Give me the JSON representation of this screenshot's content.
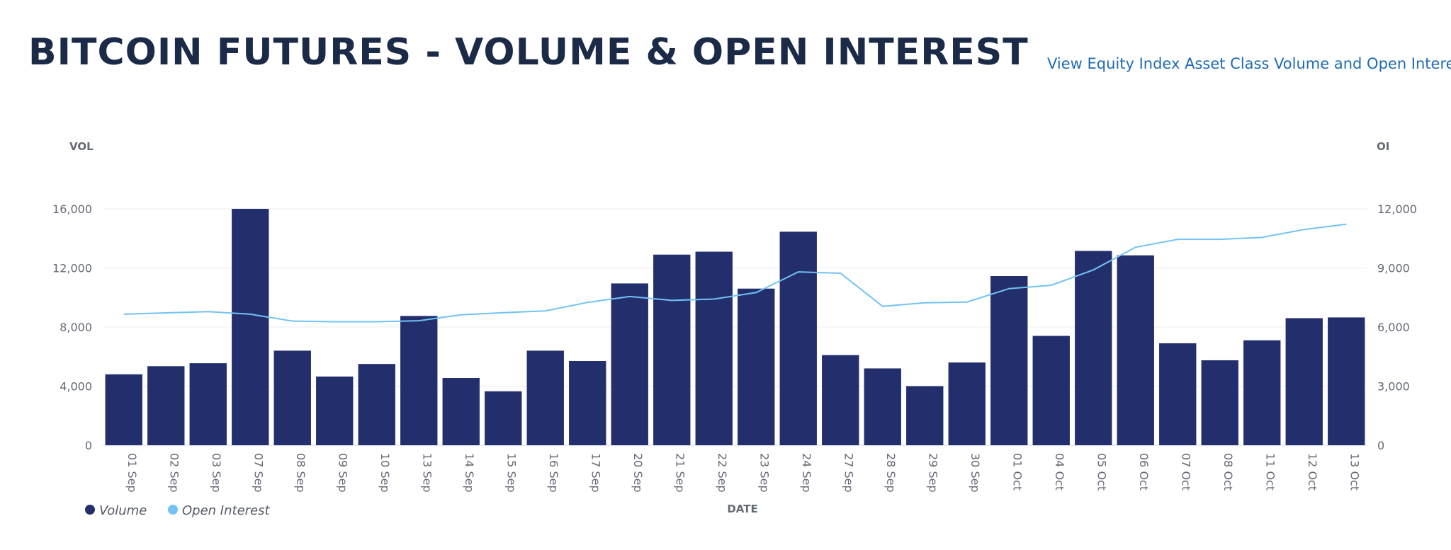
{
  "header": {
    "title": "BITCOIN FUTURES - VOLUME & OPEN INTEREST",
    "link": "View Equity Index Asset Class Volume and Open Interest"
  },
  "colors": {
    "volume": "#232f6d",
    "open_interest": "#72c3f4",
    "title": "#1b2a47",
    "link": "#1f6bb3"
  },
  "chart_data": {
    "type": "bar",
    "xlabel": "DATE",
    "ylabel": "VOL",
    "y2label": "OI",
    "ylim": [
      0,
      16000
    ],
    "y2lim": [
      0,
      12000
    ],
    "yticks": [
      "0",
      "4,000",
      "8,000",
      "12,000",
      "16,000"
    ],
    "y2ticks": [
      "0",
      "3,000",
      "6,000",
      "9,000",
      "12,000"
    ],
    "grid": true,
    "legend_position": "bottom-left",
    "categories": [
      "01 Sep",
      "02 Sep",
      "03 Sep",
      "07 Sep",
      "08 Sep",
      "09 Sep",
      "10 Sep",
      "13 Sep",
      "14 Sep",
      "15 Sep",
      "16 Sep",
      "17 Sep",
      "20 Sep",
      "21 Sep",
      "22 Sep",
      "23 Sep",
      "24 Sep",
      "27 Sep",
      "28 Sep",
      "29 Sep",
      "30 Sep",
      "01 Oct",
      "04 Oct",
      "05 Oct",
      "06 Oct",
      "07 Oct",
      "08 Oct",
      "11 Oct",
      "12 Oct",
      "13 Oct"
    ],
    "series": [
      {
        "name": "Volume",
        "type": "bar",
        "axis": "left",
        "values": [
          4800,
          5350,
          5550,
          16000,
          6400,
          4650,
          5500,
          8750,
          4550,
          3650,
          6400,
          5700,
          10950,
          12900,
          13100,
          10600,
          14450,
          6100,
          5200,
          4000,
          5600,
          11450,
          7400,
          13150,
          12850,
          6900,
          5750,
          7100,
          8600,
          8650
        ]
      },
      {
        "name": "Open Interest",
        "type": "line",
        "axis": "right",
        "values": [
          6650,
          6720,
          6780,
          6650,
          6300,
          6270,
          6270,
          6320,
          6620,
          6730,
          6820,
          7250,
          7550,
          7350,
          7420,
          7750,
          8800,
          8730,
          7050,
          7230,
          7270,
          7950,
          8120,
          8900,
          10050,
          10450,
          10450,
          10550,
          10950,
          11220
        ]
      }
    ]
  }
}
